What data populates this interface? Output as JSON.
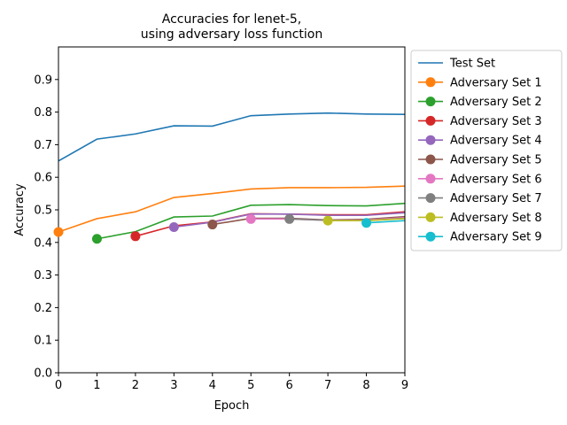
{
  "chart_data": {
    "type": "line",
    "title": [
      "Accuracies for lenet-5,",
      "using adversary loss function"
    ],
    "xlabel": "Epoch",
    "ylabel": "Accuracy",
    "xlim": [
      0,
      9
    ],
    "ylim": [
      0,
      1.0
    ],
    "x_ticks": [
      0,
      1,
      2,
      3,
      4,
      5,
      6,
      7,
      8,
      9
    ],
    "y_ticks": [
      0.0,
      0.1,
      0.2,
      0.3,
      0.4,
      0.5,
      0.6,
      0.7,
      0.8,
      0.9
    ],
    "grid": false,
    "legend_position": "outside-right-top",
    "series": [
      {
        "name": "Test Set",
        "color": "#1f77b4",
        "marker": false,
        "x": [
          0,
          1,
          2,
          3,
          4,
          5,
          6,
          7,
          8,
          9
        ],
        "values": [
          0.65,
          0.717,
          0.733,
          0.758,
          0.757,
          0.789,
          0.794,
          0.797,
          0.794,
          0.793
        ]
      },
      {
        "name": "Adversary Set 1",
        "color": "#ff7f0e",
        "marker": true,
        "x": [
          0,
          1,
          2,
          3,
          4,
          5,
          6,
          7,
          8,
          9
        ],
        "values": [
          0.432,
          0.473,
          0.494,
          0.538,
          0.55,
          0.564,
          0.568,
          0.568,
          0.569,
          0.573
        ]
      },
      {
        "name": "Adversary Set 2",
        "color": "#2ca02c",
        "marker": true,
        "x": [
          1,
          2,
          3,
          4,
          5,
          6,
          7,
          8,
          9
        ],
        "values": [
          0.411,
          0.433,
          0.478,
          0.481,
          0.514,
          0.516,
          0.513,
          0.512,
          0.52
        ]
      },
      {
        "name": "Adversary Set 3",
        "color": "#d62728",
        "marker": true,
        "x": [
          2,
          3,
          4,
          5,
          6,
          7,
          8,
          9
        ],
        "values": [
          0.419,
          0.451,
          0.463,
          0.488,
          0.487,
          0.485,
          0.485,
          0.494
        ]
      },
      {
        "name": "Adversary Set 4",
        "color": "#9467bd",
        "marker": true,
        "x": [
          3,
          4,
          5,
          6,
          7,
          8,
          9
        ],
        "values": [
          0.447,
          0.462,
          0.487,
          0.487,
          0.483,
          0.483,
          0.491
        ]
      },
      {
        "name": "Adversary Set 5",
        "color": "#8c564b",
        "marker": true,
        "x": [
          4,
          5,
          6,
          7,
          8,
          9
        ],
        "values": [
          0.455,
          0.474,
          0.474,
          0.469,
          0.471,
          0.479
        ]
      },
      {
        "name": "Adversary Set 6",
        "color": "#e377c2",
        "marker": true,
        "x": [
          5,
          6,
          7,
          8,
          9
        ],
        "values": [
          0.472,
          0.472,
          0.468,
          0.469,
          0.476
        ]
      },
      {
        "name": "Adversary Set 7",
        "color": "#7f7f7f",
        "marker": true,
        "x": [
          6,
          7,
          8,
          9
        ],
        "values": [
          0.472,
          0.468,
          0.467,
          0.474
        ]
      },
      {
        "name": "Adversary Set 8",
        "color": "#bcbd22",
        "marker": true,
        "x": [
          7,
          8,
          9
        ],
        "values": [
          0.467,
          0.467,
          0.473
        ]
      },
      {
        "name": "Adversary Set 9",
        "color": "#17becf",
        "marker": true,
        "x": [
          8,
          9
        ],
        "values": [
          0.46,
          0.467
        ]
      }
    ]
  }
}
